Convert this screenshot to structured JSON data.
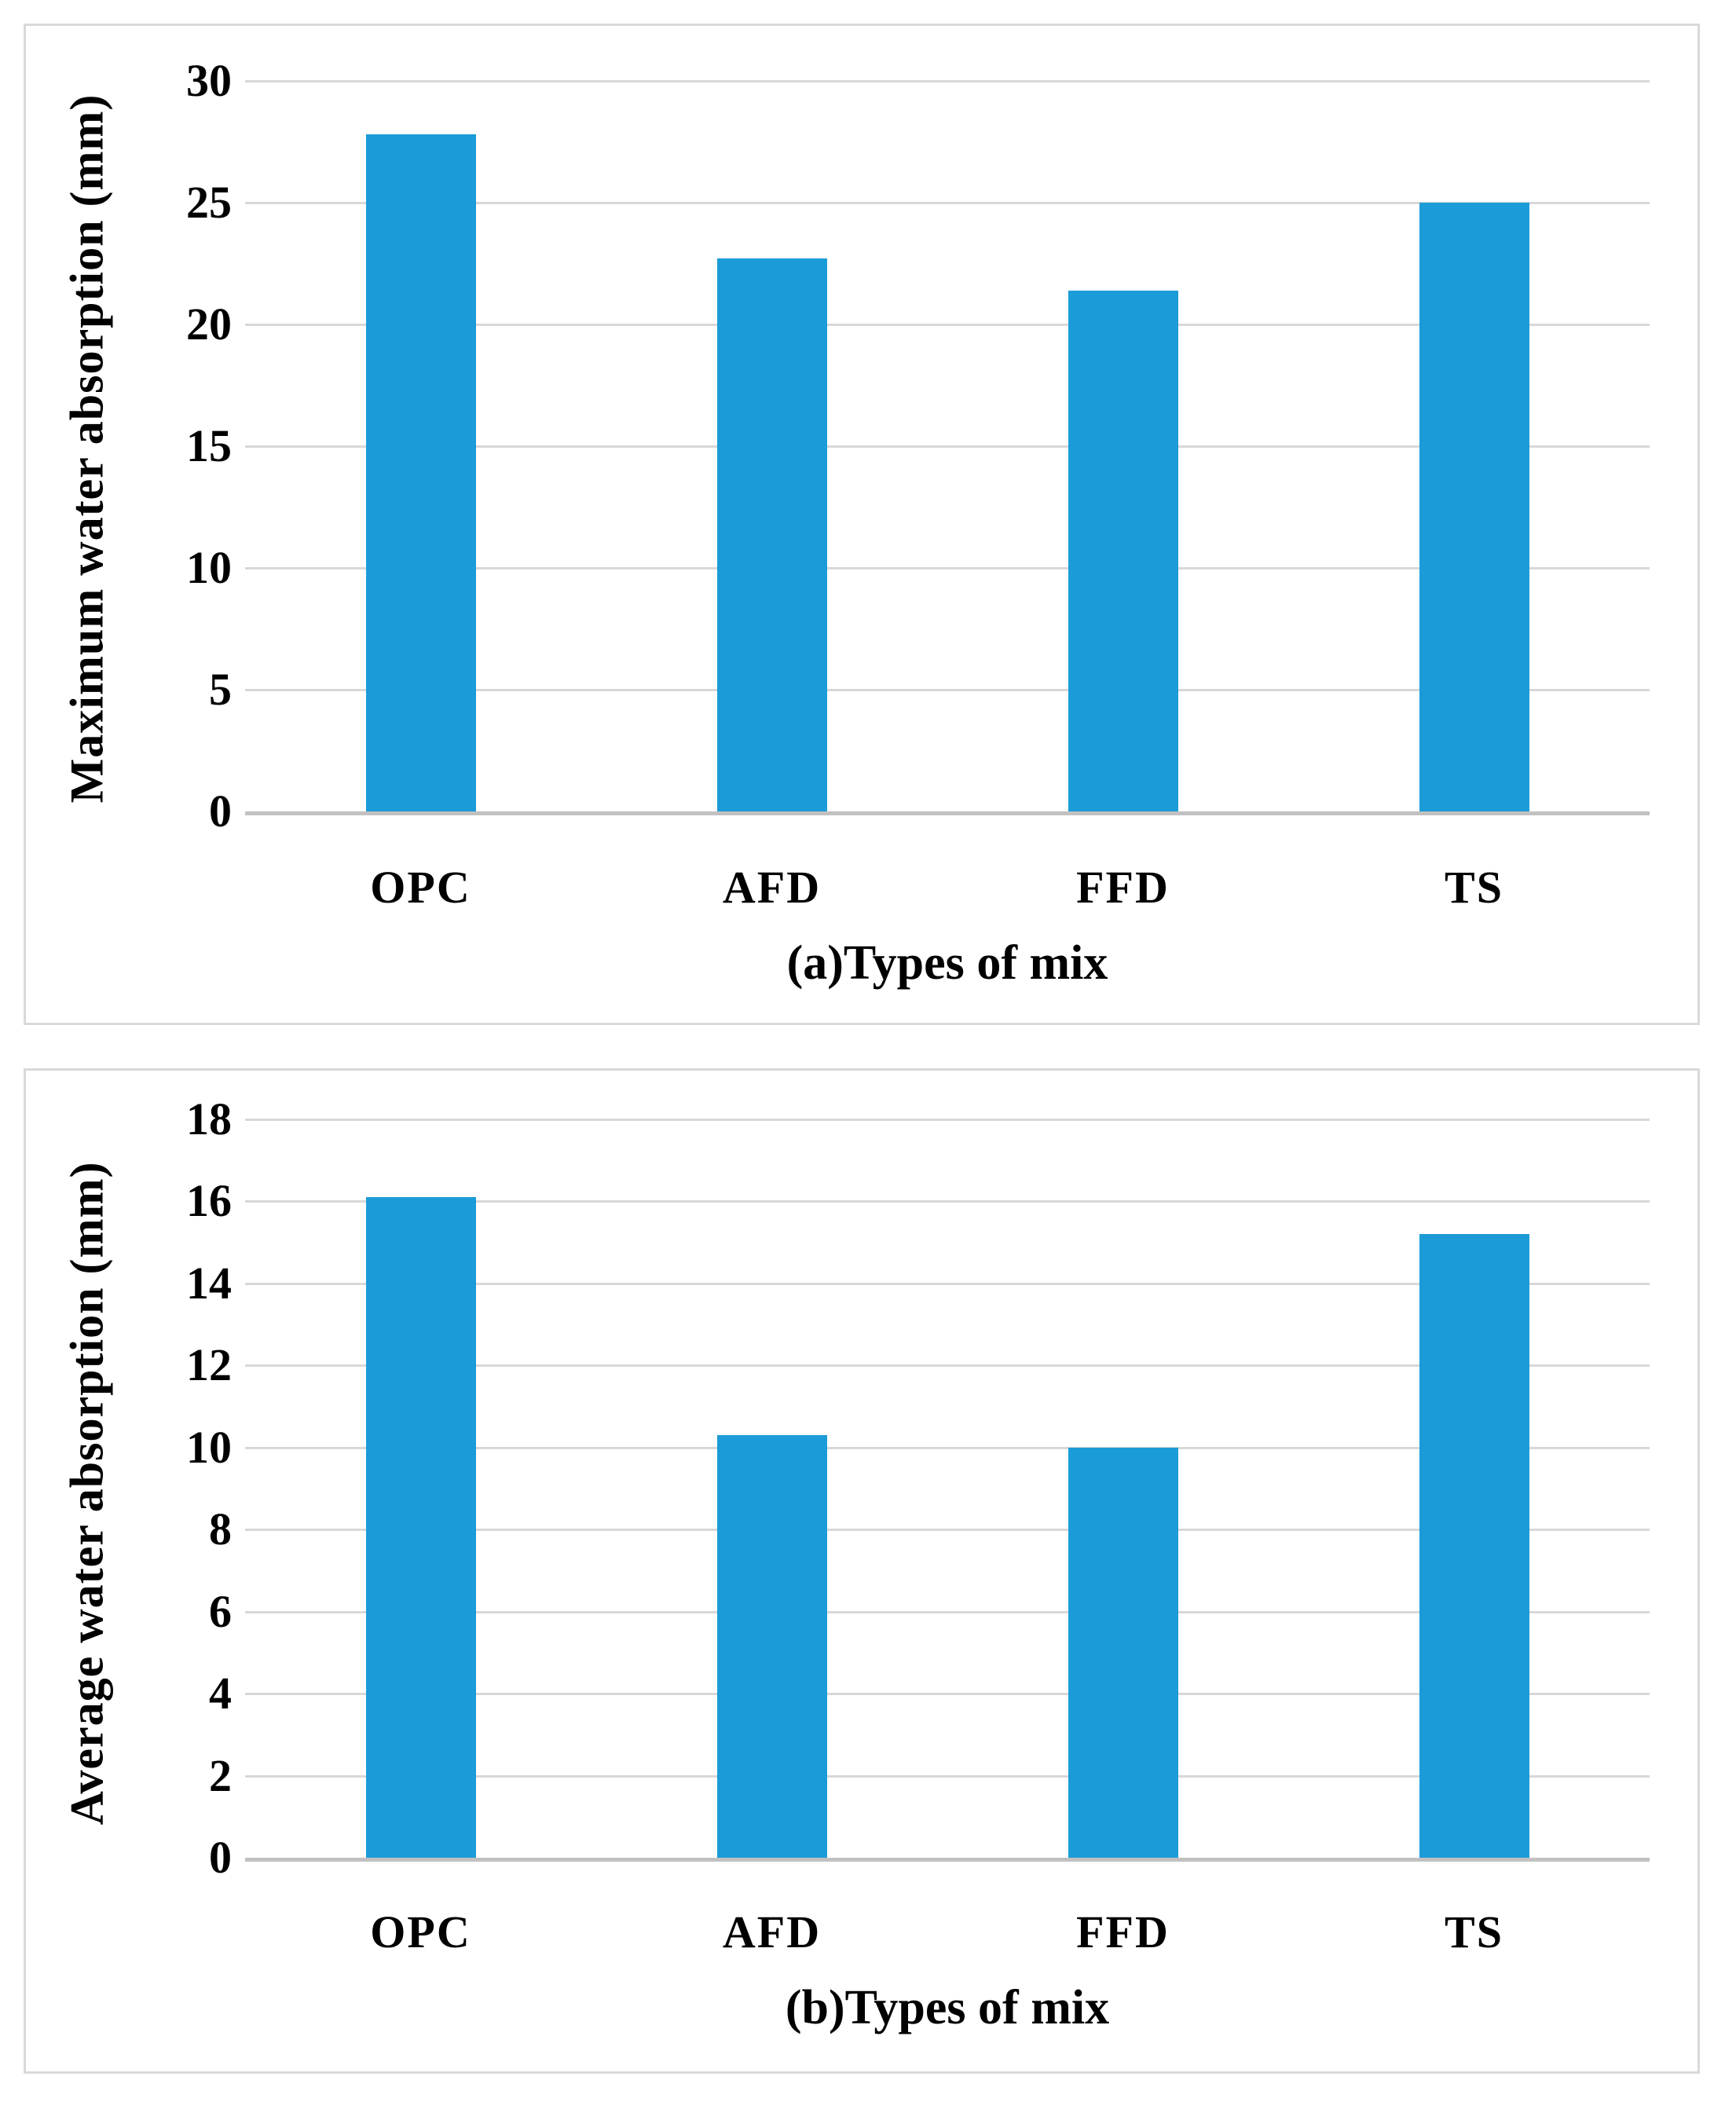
{
  "figure": {
    "bar_color": "#1b9cd8",
    "gridline_color": "#d8d8d8",
    "baseline_color": "#c2c0c0",
    "panel_border_color": "#d9d9d9",
    "text_color": "#000000"
  },
  "chart_data": [
    {
      "type": "bar",
      "panel": "a",
      "ylabel": "Maximum water absorption (mm)",
      "xlabel": "(a)Types of mix",
      "categories": [
        "OPC",
        "AFD",
        "FFD",
        "TS"
      ],
      "values": [
        27.8,
        22.7,
        21.4,
        25.0
      ],
      "ylim": [
        0,
        30
      ],
      "ytick_step": 5,
      "yticks": [
        0,
        5,
        10,
        15,
        20,
        25,
        30
      ],
      "grid": true,
      "legend": null
    },
    {
      "type": "bar",
      "panel": "b",
      "ylabel": "Average water absorption (mm)",
      "xlabel": "(b)Types of mix",
      "categories": [
        "OPC",
        "AFD",
        "FFD",
        "TS"
      ],
      "values": [
        16.1,
        10.3,
        10.0,
        15.2
      ],
      "ylim": [
        0,
        18
      ],
      "ytick_step": 2,
      "yticks": [
        0,
        2,
        4,
        6,
        8,
        10,
        12,
        14,
        16,
        18
      ],
      "grid": true,
      "legend": null
    }
  ]
}
